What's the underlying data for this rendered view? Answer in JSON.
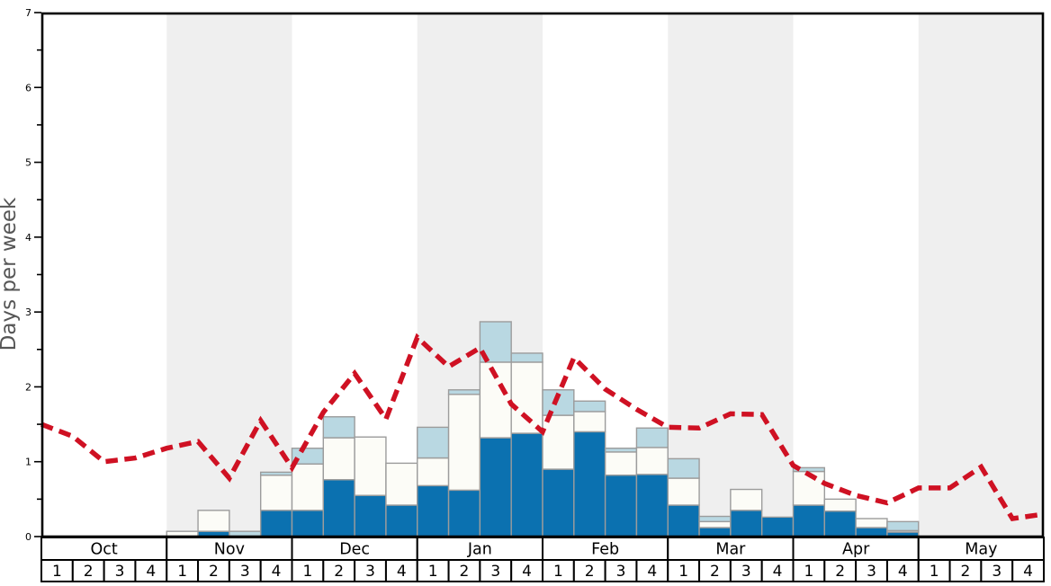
{
  "chart_data": {
    "type": "bar",
    "title": "",
    "ylabel": "Days per week",
    "ylim": [
      0,
      7
    ],
    "y_tick_labels": [
      "0",
      "1",
      "2",
      "3",
      "4",
      "5",
      "6",
      "7"
    ],
    "y_minor_step": 0.5,
    "grid": false,
    "legend": "none",
    "months": [
      "Oct",
      "Nov",
      "Dec",
      "Jan",
      "Feb",
      "Mar",
      "Apr",
      "May"
    ],
    "weeks_per_month": 4,
    "week_labels": [
      "1",
      "2",
      "3",
      "4"
    ],
    "shaded_month_indices": [
      1,
      3,
      5,
      7
    ],
    "series": [
      {
        "name": "segment-bottom-dark-blue",
        "color": "#0b71b0",
        "values": [
          0,
          0,
          0,
          0,
          0,
          0.07,
          0,
          0.35,
          0.35,
          0.76,
          0.55,
          0.42,
          0.68,
          0.62,
          1.32,
          1.38,
          0.9,
          1.4,
          0.82,
          0.83,
          0.42,
          0.12,
          0.35,
          0.26,
          0.42,
          0.34,
          0.12,
          0.06,
          0,
          0,
          0,
          0
        ]
      },
      {
        "name": "segment-middle-white",
        "color": "#fcfcf7",
        "values": [
          0,
          0,
          0,
          0,
          0.07,
          0.28,
          0,
          0.47,
          0.62,
          0.56,
          0.78,
          0.56,
          0.37,
          1.28,
          1.01,
          0.95,
          0.72,
          0.27,
          0.31,
          0.36,
          0.36,
          0.08,
          0.28,
          0,
          0.45,
          0.16,
          0.12,
          0.02,
          0,
          0,
          0,
          0
        ]
      },
      {
        "name": "segment-top-light-blue",
        "color": "#b9d8e2",
        "values": [
          0,
          0,
          0,
          0,
          0,
          0,
          0.07,
          0.04,
          0.21,
          0.28,
          0,
          0,
          0.41,
          0.06,
          0.54,
          0.12,
          0.34,
          0.14,
          0.05,
          0.26,
          0.26,
          0.07,
          0,
          0,
          0.05,
          0,
          0,
          0.12,
          0,
          0,
          0,
          0
        ]
      }
    ],
    "average_line": {
      "name": "red-dashed-average-line",
      "color": "#cf1123",
      "style": "dashed",
      "note": "one value per week boundary, Oct start through May end",
      "boundary_values": [
        1.5,
        1.34,
        1.0,
        1.05,
        1.18,
        1.27,
        0.78,
        1.55,
        0.92,
        1.66,
        2.18,
        1.57,
        2.66,
        2.27,
        2.52,
        1.77,
        1.4,
        2.39,
        1.97,
        1.7,
        1.46,
        1.45,
        1.64,
        1.63,
        0.95,
        0.71,
        0.55,
        0.45,
        0.65,
        0.65,
        0.93,
        0.24,
        0.3
      ]
    },
    "colors": {
      "band_shaded": "#efefef",
      "band_plain": "#ffffff",
      "bar_border": "#9c9c9c",
      "frame": "#000000",
      "axis_label": "#565656",
      "tick_label": "#000000",
      "table_bg": "#ffffff",
      "table_border": "#000000",
      "table_text": "#000000"
    }
  }
}
